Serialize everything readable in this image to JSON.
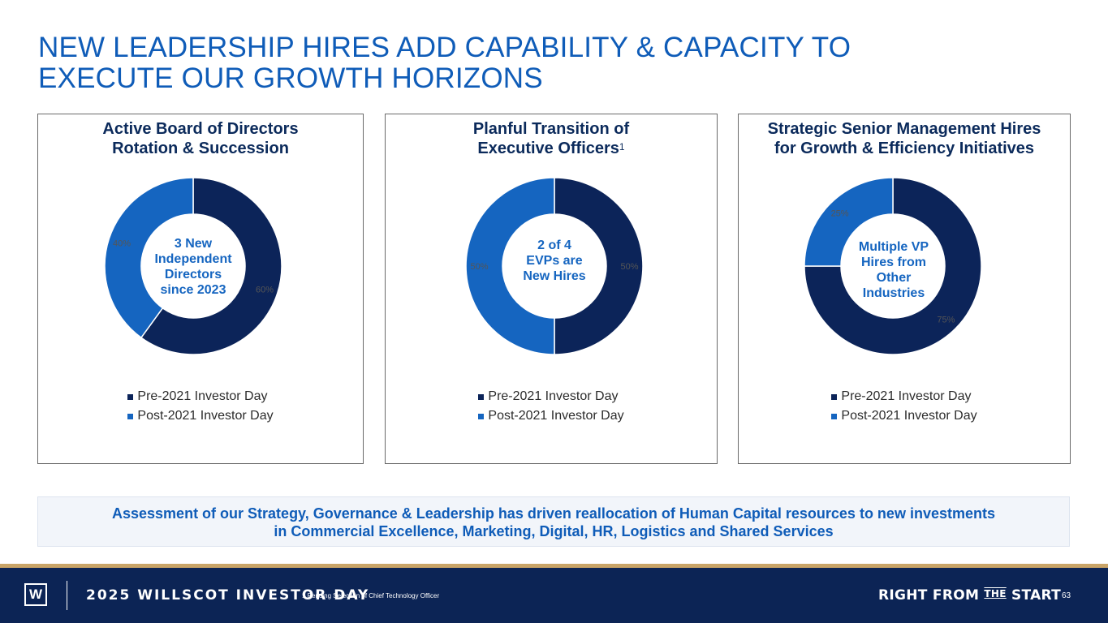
{
  "title": {
    "line1": "NEW LEADERSHIP HIRES ADD CAPABILITY & CAPACITY TO",
    "line2": "EXECUTE OUR GROWTH HORIZONS"
  },
  "colors": {
    "pre": "#0c2459",
    "post": "#1565c0",
    "accent": "#c9a467"
  },
  "panels": [
    {
      "title_line1": "Active Board of Directors",
      "title_line2": "Rotation & Succession",
      "title_sup": "",
      "center": [
        "3 New",
        "Independent",
        "Directors",
        "since 2023"
      ],
      "legend": [
        "Pre-2021 Investor Day",
        "Post-2021 Investor Day"
      ]
    },
    {
      "title_line1": "Planful Transition of",
      "title_line2": "Executive Officers",
      "title_sup": "1",
      "center": [
        "2 of 4",
        "EVPs are",
        "New Hires"
      ],
      "legend": [
        "Pre-2021 Investor Day",
        "Post-2021 Investor Day"
      ]
    },
    {
      "title_line1": "Strategic Senior Management Hires",
      "title_line2": "for Growth & Efficiency Initiatives",
      "title_sup": "",
      "center": [
        "Multiple VP",
        "Hires from",
        "Other",
        "Industries"
      ],
      "legend": [
        "Pre-2021 Investor Day",
        "Post-2021 Investor Day"
      ]
    }
  ],
  "chart_data": [
    {
      "type": "pie",
      "categories": [
        "Pre-2021 Investor Day",
        "Post-2021 Investor Day"
      ],
      "values": [
        60,
        40
      ],
      "data_labels": [
        "60%",
        "40%"
      ],
      "title": "Active Board of Directors Rotation & Succession"
    },
    {
      "type": "pie",
      "categories": [
        "Pre-2021 Investor Day",
        "Post-2021 Investor Day"
      ],
      "values": [
        50,
        50
      ],
      "data_labels": [
        "50%",
        "50%"
      ],
      "title": "Planful Transition of Executive Officers"
    },
    {
      "type": "pie",
      "categories": [
        "Pre-2021 Investor Day",
        "Post-2021 Investor Day"
      ],
      "values": [
        75,
        25
      ],
      "data_labels": [
        "75%",
        "25%"
      ],
      "title": "Strategic Senior Management Hires for Growth & Efficiency Initiatives"
    }
  ],
  "summary": {
    "line1": "Assessment of our Strategy, Governance & Leadership has driven reallocation of Human Capital resources to new investments",
    "line2": "in Commercial Excellence, Marketing, Digital, HR, Logistics and Shared Services"
  },
  "footer": {
    "logo_letter": "W",
    "event": "2025 WILLSCOT INVESTOR DAY",
    "footnote": "1 Pending Selection of Chief Technology Officer",
    "tagline_a": "RIGHT FROM ",
    "tagline_the": "THE",
    "tagline_b": " START",
    "page": "63"
  }
}
